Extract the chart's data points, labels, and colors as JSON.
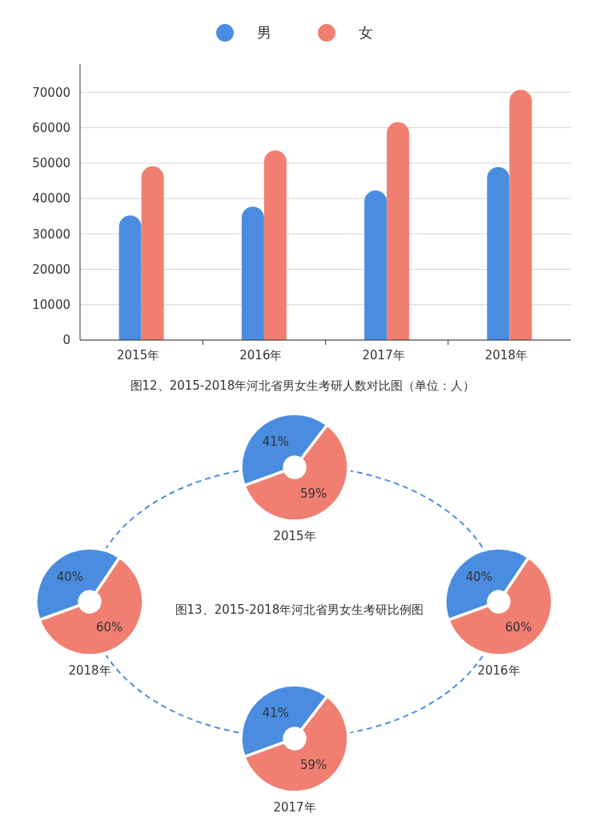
{
  "chart_data": [
    {
      "type": "bar",
      "title": "图12、2015-2018年河北省男女生考研人数对比图（单位：人）",
      "categories": [
        "2015年",
        "2016年",
        "2017年",
        "2018年"
      ],
      "series": [
        {
          "name": "男",
          "color": "#4a8de0",
          "values": [
            35200,
            37700,
            42300,
            48900
          ]
        },
        {
          "name": "女",
          "color": "#f07f71",
          "values": [
            49100,
            53600,
            61600,
            70700
          ]
        }
      ],
      "ylim": [
        0,
        78000
      ],
      "yticks": [
        0,
        10000,
        20000,
        30000,
        40000,
        50000,
        60000,
        70000
      ],
      "grid": "y",
      "legend": "top"
    },
    {
      "type": "donut",
      "title": "2015年",
      "categories": [
        null,
        null
      ],
      "values": [
        41,
        59
      ],
      "colors": [
        "#4a8de0",
        "#f07f71"
      ],
      "value_labels": [
        "41%",
        "59%"
      ],
      "annotations": [
        "图13、2015-2018年河北省男女生考研比例图"
      ]
    },
    {
      "type": "donut",
      "title": "2018年",
      "categories": [
        null,
        null
      ],
      "values": [
        40,
        60
      ],
      "colors": [
        "#4a8de0",
        "#f07f71"
      ],
      "value_labels": [
        "40%",
        "60%"
      ]
    },
    {
      "type": "donut",
      "title": "2016年",
      "categories": [
        null,
        null
      ],
      "values": [
        40,
        60
      ],
      "colors": [
        "#4a8de0",
        "#f07f71"
      ],
      "value_labels": [
        "40%",
        "60%"
      ]
    },
    {
      "type": "donut",
      "title": "2017年",
      "categories": [
        null,
        null
      ],
      "values": [
        41,
        59
      ],
      "colors": [
        "#4a8de0",
        "#f07f71"
      ],
      "value_labels": [
        "41%",
        "59%"
      ]
    }
  ]
}
